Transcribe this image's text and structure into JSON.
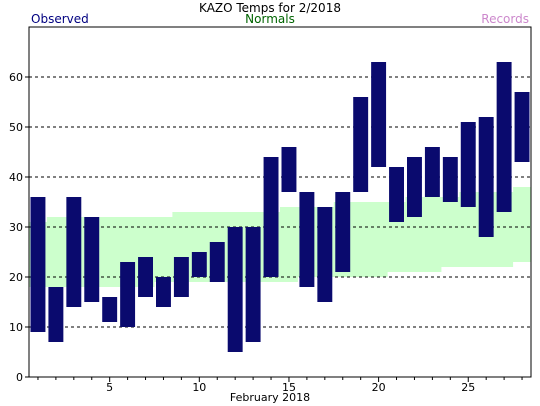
{
  "chart_data": {
    "type": "bar",
    "title": "KAZO Temps for 2/2018",
    "xlabel": "February 2018",
    "ylabel": "",
    "xlim": [
      0.5,
      28.5
    ],
    "ylim": [
      0,
      70
    ],
    "grid": true,
    "y_ticks": [
      0,
      10,
      20,
      30,
      40,
      50,
      60
    ],
    "x_ticks": [
      5,
      10,
      15,
      20,
      25
    ],
    "legend": [
      {
        "name": "Observed",
        "color": "#000080",
        "position": "top-left"
      },
      {
        "name": "Normals",
        "color": "#006400",
        "position": "top-center"
      },
      {
        "name": "Records",
        "color": "#cc88cc",
        "position": "top-right"
      }
    ],
    "categories": [
      1,
      2,
      3,
      4,
      5,
      6,
      7,
      8,
      9,
      10,
      11,
      12,
      13,
      14,
      15,
      16,
      17,
      18,
      19,
      20,
      21,
      22,
      23,
      24,
      25,
      26,
      27,
      28
    ],
    "series": [
      {
        "name": "Observed",
        "type": "floating-bar",
        "color": "#0a0a6e",
        "high": [
          36,
          18,
          36,
          32,
          16,
          23,
          24,
          20,
          24,
          25,
          27,
          30,
          30,
          44,
          46,
          37,
          34,
          37,
          56,
          63,
          42,
          44,
          46,
          44,
          51,
          52,
          63,
          57
        ],
        "low": [
          9,
          7,
          14,
          15,
          11,
          10,
          16,
          14,
          16,
          20,
          19,
          5,
          7,
          20,
          37,
          18,
          15,
          21,
          37,
          42,
          31,
          32,
          36,
          35,
          34,
          28,
          33,
          43
        ]
      },
      {
        "name": "Normals",
        "type": "band",
        "color": "#ccffcc",
        "high": [
          31,
          32,
          32,
          32,
          32,
          32,
          32,
          32,
          33,
          33,
          33,
          33,
          33,
          33,
          34,
          34,
          34,
          35,
          35,
          35,
          35,
          36,
          36,
          36,
          37,
          37,
          37,
          38
        ],
        "low": [
          18,
          18,
          18,
          18,
          18,
          18,
          18,
          19,
          19,
          19,
          19,
          19,
          19,
          19,
          19,
          20,
          20,
          20,
          20,
          20,
          21,
          21,
          21,
          22,
          22,
          22,
          22,
          23
        ]
      }
    ]
  }
}
